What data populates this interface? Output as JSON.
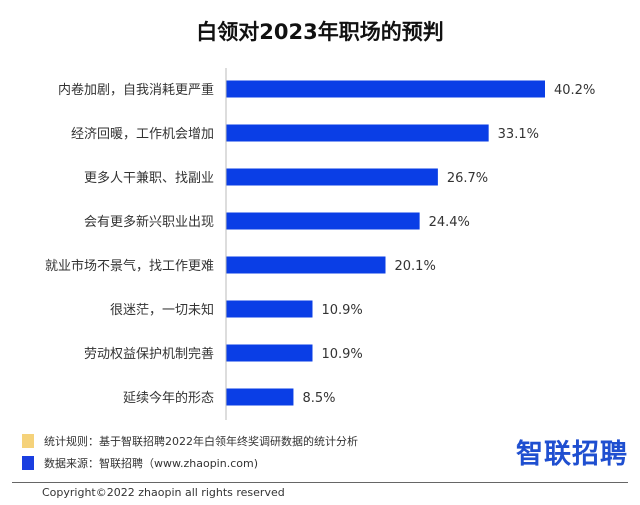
{
  "chart_data": {
    "type": "bar",
    "orientation": "horizontal",
    "title": "白领对2023年职场的预判",
    "categories": [
      "内卷加剧，自我消耗更严重",
      "经济回暖，工作机会增加",
      "更多人干兼职、找副业",
      "会有更多新兴职业出现",
      "就业市场不景气，找工作更难",
      "很迷茫，一切未知",
      "劳动权益保护机制完善",
      "延续今年的形态"
    ],
    "values": [
      40.2,
      33.1,
      26.7,
      24.4,
      20.1,
      10.9,
      10.9,
      8.5
    ],
    "value_labels": [
      "40.2%",
      "33.1%",
      "26.7%",
      "24.4%",
      "20.1%",
      "10.9%",
      "10.9%",
      "8.5%"
    ],
    "xlabel": "",
    "ylabel": "",
    "xlim": [
      0,
      40.2
    ],
    "grid": false,
    "bar_color": "#0a3ee6"
  },
  "footer": {
    "rule_label": "统计规则：基于智联招聘2022年白领年终奖调研数据的统计分析",
    "rule_color": "#f5d27a",
    "source_label": "数据来源：智联招聘（www.zhaopin.com)",
    "source_color": "#1a3ee0",
    "logo": "智联招聘",
    "copyright": "Copyright©2022 zhaopin all rights reserved"
  }
}
